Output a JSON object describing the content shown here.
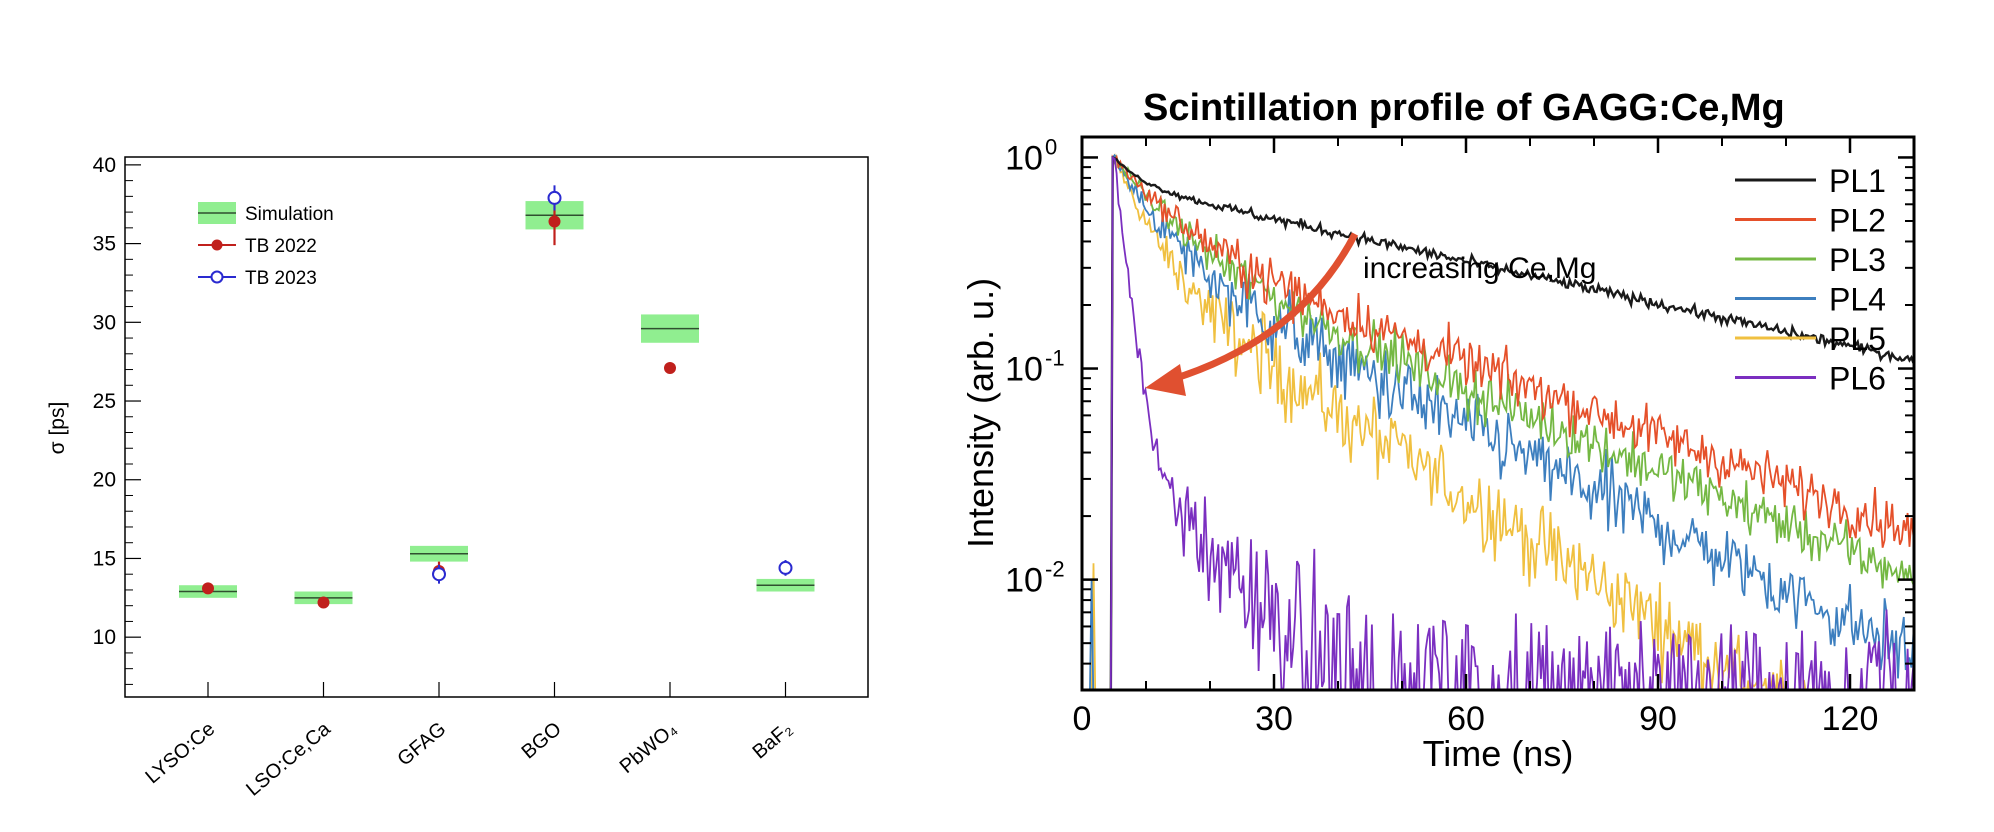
{
  "colors": {
    "sim_band": "#90ee90",
    "sim_line": "#2f4f2f",
    "tb2022": "#c0201c",
    "tb2023": "#2a2ad0",
    "PL1": "#1a1a1a",
    "PL2": "#e5502a",
    "PL3": "#74b843",
    "PL4": "#3d7fbf",
    "PL5": "#f0c040",
    "PL6": "#7b2fc0",
    "arrow": "#e05030"
  },
  "chart_data": [
    {
      "type": "scatter",
      "title": "",
      "xlabel": "",
      "ylabel": "σ [ps]",
      "ylim": [
        6.2,
        40.5
      ],
      "yticks": [
        10,
        15,
        20,
        25,
        30,
        35,
        40
      ],
      "categories": [
        "LYSO:Ce",
        "LSO:Ce,Ca",
        "GFAG",
        "BGO",
        "PbWO₄",
        "BaF₂"
      ],
      "legend": {
        "position": "top-left",
        "entries": [
          "Simulation",
          "TB 2022",
          "TB 2023"
        ]
      },
      "series": [
        {
          "name": "Simulation",
          "values": [
            12.9,
            12.5,
            15.3,
            36.8,
            29.6,
            13.3
          ],
          "band": [
            0.4,
            0.4,
            0.5,
            0.9,
            0.9,
            0.4
          ]
        },
        {
          "name": "TB 2022",
          "values": [
            13.1,
            12.2,
            14.2,
            36.4,
            27.1,
            null
          ],
          "errors": [
            0.15,
            0.15,
            0.6,
            1.5,
            0.15,
            null
          ]
        },
        {
          "name": "TB 2023",
          "values": [
            null,
            null,
            14.0,
            37.9,
            null,
            14.4
          ],
          "errors": [
            null,
            null,
            0.6,
            0.8,
            null,
            0.5
          ]
        }
      ]
    },
    {
      "type": "line",
      "title": "Scintillation profile of GAGG:Ce,Mg",
      "xlabel": "Time (ns)",
      "ylabel": "Intensity (arb. u.)",
      "xlim": [
        0,
        130
      ],
      "xticks": [
        0,
        30,
        60,
        90,
        120
      ],
      "yscale": "log",
      "ylim": [
        0.003,
        1.25
      ],
      "yticks": [
        {
          "value": 1,
          "base": "10",
          "exp": "0"
        },
        {
          "value": 0.1,
          "base": "10",
          "exp": "-1"
        },
        {
          "value": 0.01,
          "base": "10",
          "exp": "-2"
        }
      ],
      "legend": {
        "position": "top-right"
      },
      "annotation": {
        "text": "increasing Ce,Mg"
      },
      "peak_time_ns": 5,
      "series": [
        {
          "name": "PL1",
          "components": [
            [
              0.25,
              4
            ],
            [
              0.75,
              65
            ]
          ],
          "noise": 0.03
        },
        {
          "name": "PL2",
          "components": [
            [
              0.55,
              8
            ],
            [
              0.45,
              38
            ]
          ],
          "noise": 0.14
        },
        {
          "name": "PL3",
          "components": [
            [
              0.6,
              8
            ],
            [
              0.4,
              34
            ]
          ],
          "noise": 0.14
        },
        {
          "name": "PL4",
          "components": [
            [
              0.62,
              6
            ],
            [
              0.38,
              28
            ]
          ],
          "noise": 0.2
        },
        {
          "name": "PL5",
          "components": [
            [
              0.7,
              5
            ],
            [
              0.3,
              22
            ]
          ],
          "noise": 0.22
        },
        {
          "name": "PL6",
          "components": [
            [
              0.96,
              1.6
            ],
            [
              0.04,
              12
            ]
          ],
          "noise": 0.25,
          "floor": 0.004
        }
      ]
    }
  ]
}
